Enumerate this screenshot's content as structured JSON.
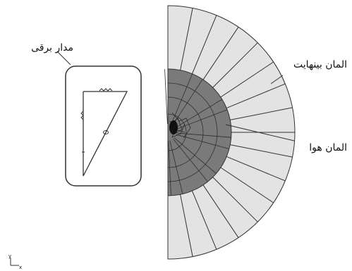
{
  "labels": {
    "circuit": "مدار برقی",
    "infinite_element": "المان بینهایت",
    "air_element": "المان هوا"
  },
  "axis_triad": {
    "y": "y",
    "x": "x"
  },
  "colors": {
    "outer_ring": "#e3e3e3",
    "inner_region": "#7a7a7a",
    "mesh_line": "#333333",
    "circuit_line": "#333333"
  }
}
